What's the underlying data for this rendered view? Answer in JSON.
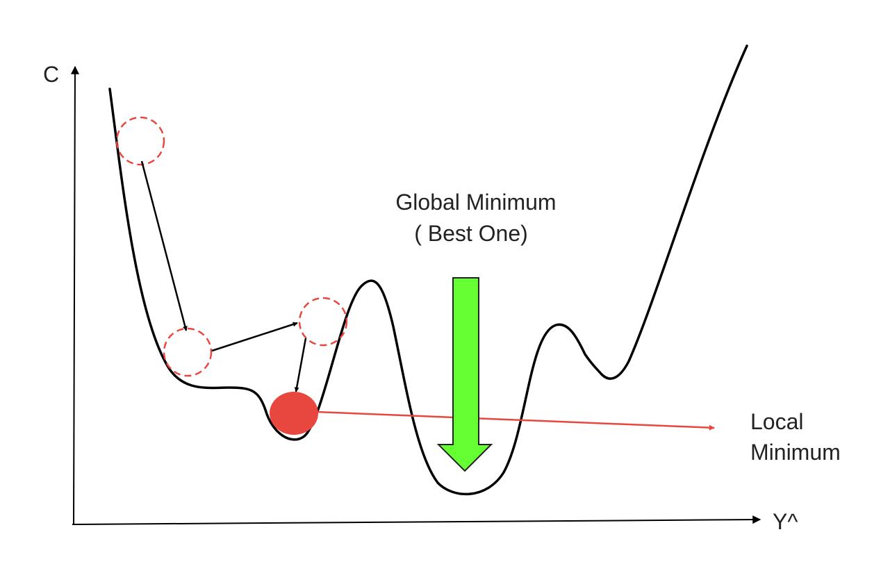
{
  "axes": {
    "y_label": "C",
    "x_label": "Y^"
  },
  "annotations": {
    "global_minimum": {
      "line1": "Global Minimum",
      "line2": "( Best One)"
    },
    "local_minimum": {
      "line1": "Local",
      "line2": "Minimum"
    }
  },
  "colors": {
    "curve": "#000000",
    "step_circle_outline": "#e8473f",
    "ball_fill": "#e8473f",
    "pointer_arrow": "#e8473f",
    "global_arrow_fill": "#66ff33",
    "global_arrow_stroke": "#222222",
    "text": "#222222"
  }
}
